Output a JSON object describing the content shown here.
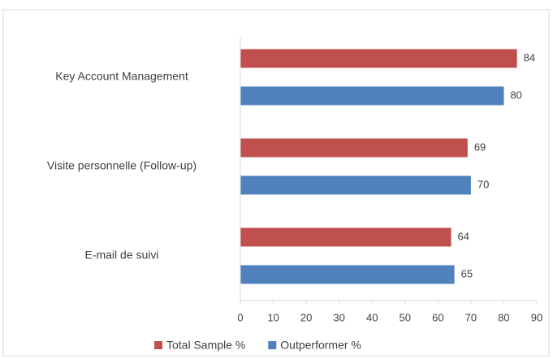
{
  "chart_data": {
    "type": "bar",
    "orientation": "horizontal",
    "categories": [
      "Key Account Management",
      "Visite personnelle (Follow-up)",
      "E-mail de suivi"
    ],
    "series": [
      {
        "name": "Total Sample %",
        "color": "#c0504d",
        "values": [
          84,
          69,
          64
        ]
      },
      {
        "name": "Outperformer %",
        "color": "#4f81bd",
        "values": [
          80,
          70,
          65
        ]
      }
    ],
    "xlim": [
      0,
      90
    ],
    "xticks": [
      0,
      10,
      20,
      30,
      40,
      50,
      60,
      70,
      80,
      90
    ],
    "legend": "bottom"
  }
}
